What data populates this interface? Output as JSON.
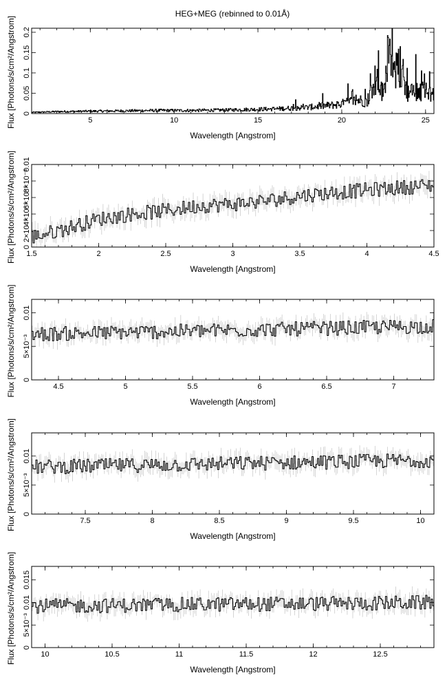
{
  "title": "HEG+MEG (rebinned to 0.01Å)",
  "chart_data": [
    {
      "type": "line",
      "xlabel": "Wavelength [Angstrom]",
      "ylabel": "Flux [Photons/s/cm²/Angstrom]",
      "xlim": [
        1.5,
        25.5
      ],
      "ylim": [
        0,
        0.21
      ],
      "xticks": [
        5,
        10,
        15,
        20,
        25
      ],
      "yticks": [
        0,
        0.05,
        0.1,
        0.15,
        0.2
      ],
      "yticklabels": [
        "0",
        "0.05",
        "0.1",
        "0.15",
        "0.2"
      ],
      "error_bars": false,
      "series": [
        {
          "x": [
            1.5,
            3,
            5,
            7,
            9,
            11,
            13,
            15,
            16,
            17,
            18,
            19,
            19.5,
            20,
            20.5,
            21,
            21.5,
            22,
            22.5,
            22.8,
            23,
            23.5,
            24,
            24.5,
            25,
            25.5
          ],
          "y": [
            0.003,
            0.005,
            0.006,
            0.007,
            0.008,
            0.008,
            0.009,
            0.011,
            0.012,
            0.014,
            0.016,
            0.02,
            0.022,
            0.025,
            0.03,
            0.035,
            0.03,
            0.09,
            0.05,
            0.19,
            0.1,
            0.12,
            0.05,
            0.06,
            0.055,
            0.05
          ]
        }
      ]
    },
    {
      "type": "line",
      "xlabel": "Wavelength [Angstrom]",
      "ylabel": "Flux [Photons/s/cm²/Angstrom]",
      "xlim": [
        1.5,
        4.5
      ],
      "ylim": [
        0,
        0.01
      ],
      "xticks": [
        1.5,
        2,
        2.5,
        3,
        3.5,
        4,
        4.5
      ],
      "yticks": [
        0,
        0.002,
        0.004,
        0.006,
        0.008,
        0.01
      ],
      "yticklabels": [
        "0",
        "2×10⁻³",
        "4×10⁻³",
        "6×10⁻³",
        "8×10⁻³",
        "0.01"
      ],
      "error_bars": true,
      "series": [
        {
          "x": [
            1.5,
            1.75,
            2,
            2.25,
            2.5,
            2.75,
            3,
            3.25,
            3.5,
            3.75,
            4,
            4.25,
            4.5
          ],
          "y": [
            0.0012,
            0.0022,
            0.0034,
            0.004,
            0.0044,
            0.005,
            0.0052,
            0.0056,
            0.0062,
            0.0066,
            0.0069,
            0.0072,
            0.0075
          ]
        }
      ]
    },
    {
      "type": "line",
      "xlabel": "Wavelength [Angstrom]",
      "ylabel": "Flux [Photons/s/cm²/Angstrom]",
      "xlim": [
        4.3,
        7.3
      ],
      "ylim": [
        0,
        0.012
      ],
      "xticks": [
        4.5,
        5,
        5.5,
        6,
        6.5,
        7
      ],
      "yticks": [
        0,
        0.005,
        0.01
      ],
      "yticklabels": [
        "0",
        "5×10⁻³",
        "0.01"
      ],
      "error_bars": true,
      "series": [
        {
          "x": [
            4.3,
            4.8,
            5.3,
            5.8,
            6.3,
            6.8,
            7.3
          ],
          "y": [
            0.0068,
            0.007,
            0.0072,
            0.0074,
            0.0076,
            0.0078,
            0.008
          ]
        }
      ]
    },
    {
      "type": "line",
      "xlabel": "Wavelength [Angstrom]",
      "ylabel": "Flux [Photons/s/cm²/Angstrom]",
      "xlim": [
        7.1,
        10.1
      ],
      "ylim": [
        0,
        0.014
      ],
      "xticks": [
        7.5,
        8,
        8.5,
        9,
        9.5,
        10
      ],
      "yticks": [
        0,
        0.005,
        0.01
      ],
      "yticklabels": [
        "0",
        "5×10⁻³",
        "0.01"
      ],
      "error_bars": true,
      "series": [
        {
          "x": [
            7.1,
            7.6,
            8.1,
            8.6,
            9.1,
            9.6,
            10.1
          ],
          "y": [
            0.0081,
            0.0083,
            0.0085,
            0.0087,
            0.0089,
            0.0091,
            0.0093
          ]
        }
      ]
    },
    {
      "type": "line",
      "xlabel": "Wavelength [Angstrom]",
      "ylabel": "Flux [Photons/s/cm²/Angstrom]",
      "xlim": [
        9.9,
        12.9
      ],
      "ylim": [
        0,
        0.018
      ],
      "xticks": [
        10,
        10.5,
        11,
        11.5,
        12,
        12.5
      ],
      "yticks": [
        0,
        0.005,
        0.01,
        0.015
      ],
      "yticklabels": [
        "0",
        "5×10⁻³",
        "0.01",
        "0.015"
      ],
      "error_bars": true,
      "series": [
        {
          "x": [
            9.9,
            10.4,
            10.9,
            11.4,
            11.9,
            12.4,
            12.9
          ],
          "y": [
            0.0092,
            0.0093,
            0.0095,
            0.0096,
            0.0097,
            0.0098,
            0.01
          ]
        }
      ]
    }
  ]
}
